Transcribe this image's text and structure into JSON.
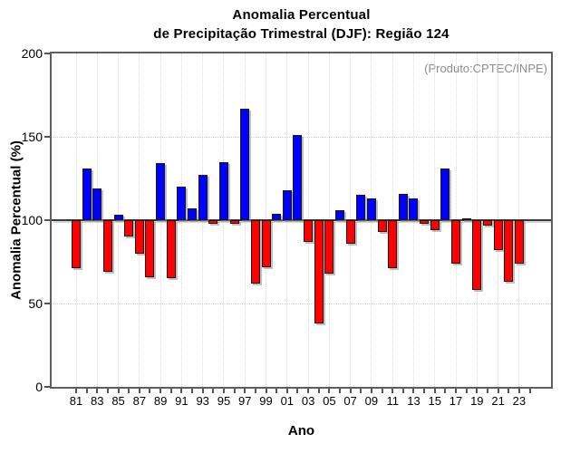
{
  "chart": {
    "title_line1": "Anomalia Percentual",
    "title_line2": "de Precipitação Trimestral (DJF): Região 124",
    "annotation": "(Produto:CPTEC/INPE)",
    "ylabel": "Anomalia Percentual (%)",
    "xlabel": "Ano"
  },
  "chart_data": {
    "type": "bar",
    "title": "Anomalia Percentual de Precipitação Trimestral (DJF): Região 124",
    "xlabel": "Ano",
    "ylabel": "Anomalia Percentual (%)",
    "ylim": [
      0,
      200
    ],
    "yticks": [
      0,
      50,
      100,
      150,
      200
    ],
    "baseline": 100,
    "grid": "dotted, vertical lines at labeled years, horizontal at 50 and 150",
    "legend_position": "none",
    "annotation": "(Produto:CPTEC/INPE)",
    "bar_colors": {
      "above_baseline": "#0000FF",
      "below_baseline": "#FF0000"
    },
    "categories": [
      "1981",
      "1982",
      "1983",
      "1984",
      "1985",
      "1986",
      "1987",
      "1988",
      "1989",
      "1990",
      "1991",
      "1992",
      "1993",
      "1994",
      "1995",
      "1996",
      "1997",
      "1998",
      "1999",
      "2000",
      "2001",
      "2002",
      "2003",
      "2004",
      "2005",
      "2006",
      "2007",
      "2008",
      "2009",
      "2010",
      "2011",
      "2012",
      "2013",
      "2014",
      "2015",
      "2016",
      "2017",
      "2018",
      "2019",
      "2020",
      "2021",
      "2022",
      "2023"
    ],
    "x_tick_labels": [
      "81",
      "83",
      "85",
      "87",
      "89",
      "91",
      "93",
      "95",
      "97",
      "99",
      "01",
      "03",
      "05",
      "07",
      "09",
      "11",
      "13",
      "15",
      "17",
      "19",
      "21",
      "23"
    ],
    "values": [
      71,
      131,
      119,
      69,
      103,
      90,
      80,
      66,
      134,
      65,
      120,
      107,
      127,
      98,
      135,
      98,
      167,
      62,
      72,
      104,
      118,
      151,
      87,
      38,
      68,
      106,
      86,
      115,
      113,
      93,
      71,
      116,
      113,
      98,
      94,
      131,
      74,
      101,
      58,
      97,
      82,
      63,
      74
    ]
  }
}
